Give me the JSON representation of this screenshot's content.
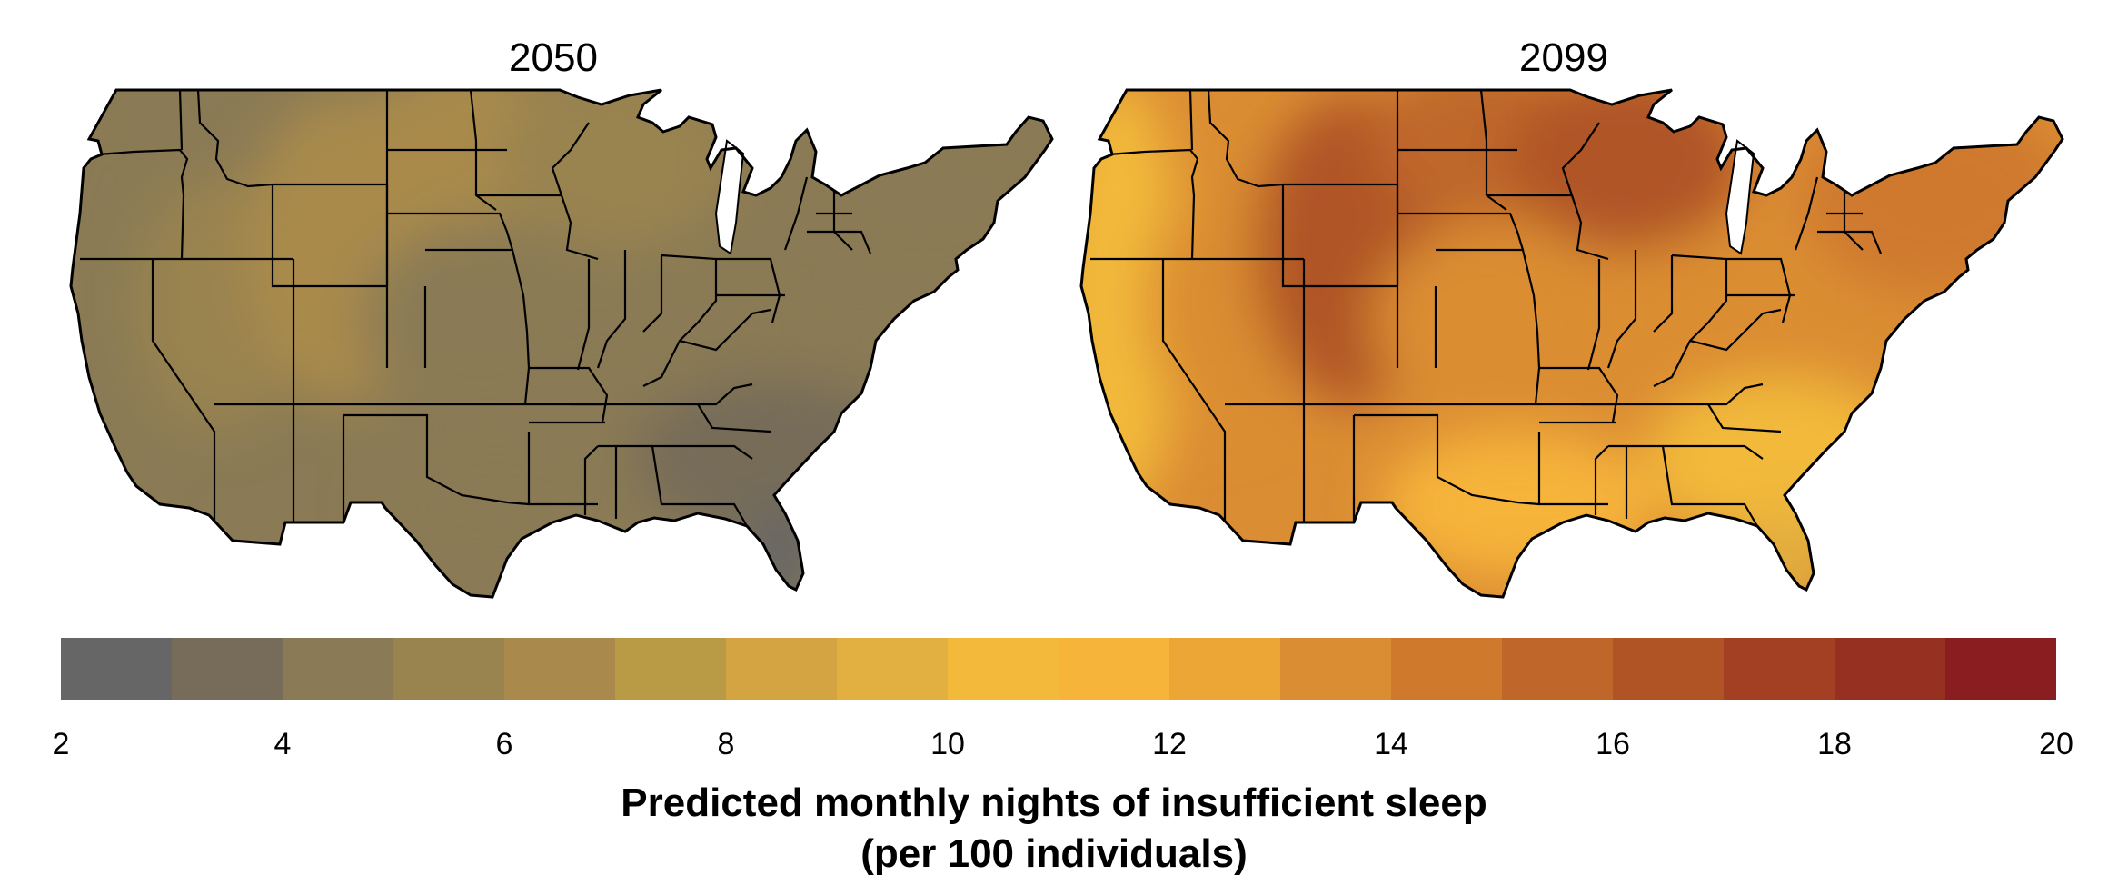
{
  "figure": {
    "panels": [
      {
        "title": "2050",
        "region": "Contiguous United States"
      },
      {
        "title": "2099",
        "region": "Contiguous United States"
      }
    ],
    "legend": {
      "title_line1": "Predicted monthly nights of insufficient sleep",
      "title_line2": "(per 100 individuals)",
      "min": 2,
      "max": 20,
      "ticks": [
        "2",
        "4",
        "6",
        "8",
        "10",
        "12",
        "14",
        "16",
        "18",
        "20"
      ],
      "bins": [
        {
          "from": 2,
          "to": 3,
          "color": "#666666"
        },
        {
          "from": 3,
          "to": 4,
          "color": "#766c59"
        },
        {
          "from": 4,
          "to": 5,
          "color": "#8a7a55"
        },
        {
          "from": 5,
          "to": 6,
          "color": "#99834f"
        },
        {
          "from": 6,
          "to": 7,
          "color": "#a98a4c"
        },
        {
          "from": 7,
          "to": 8,
          "color": "#b99a45"
        },
        {
          "from": 8,
          "to": 9,
          "color": "#d4a342"
        },
        {
          "from": 9,
          "to": 10,
          "color": "#e2b040"
        },
        {
          "from": 10,
          "to": 11,
          "color": "#f2b93a"
        },
        {
          "from": 11,
          "to": 12,
          "color": "#f6b43a"
        },
        {
          "from": 12,
          "to": 13,
          "color": "#eba636"
        },
        {
          "from": 13,
          "to": 14,
          "color": "#db8d33"
        },
        {
          "from": 14,
          "to": 15,
          "color": "#cf792d"
        },
        {
          "from": 15,
          "to": 16,
          "color": "#bf672a"
        },
        {
          "from": 16,
          "to": 17,
          "color": "#b05426"
        },
        {
          "from": 17,
          "to": 18,
          "color": "#a34024"
        },
        {
          "from": 18,
          "to": 19,
          "color": "#963122"
        },
        {
          "from": 19,
          "to": 20,
          "color": "#8a1d20"
        }
      ]
    },
    "regional_values": {
      "2050": {
        "pacific_coast": 5,
        "great_basin": 6,
        "rocky_mountains": 7,
        "northern_plains": 7,
        "central_plains": 5,
        "upper_midwest": 6,
        "ohio_valley": 5,
        "northeast": 5,
        "southeast": 4,
        "gulf_coast": 5,
        "south_florida": 3
      },
      "2099": {
        "pacific_coast": 11,
        "great_basin": 14,
        "rocky_mountains": 17,
        "northern_plains": 16,
        "central_plains": 14,
        "upper_midwest": 17,
        "ohio_valley": 14,
        "northeast": 15,
        "southeast": 11,
        "gulf_coast": 12,
        "south_florida": 10
      }
    }
  }
}
